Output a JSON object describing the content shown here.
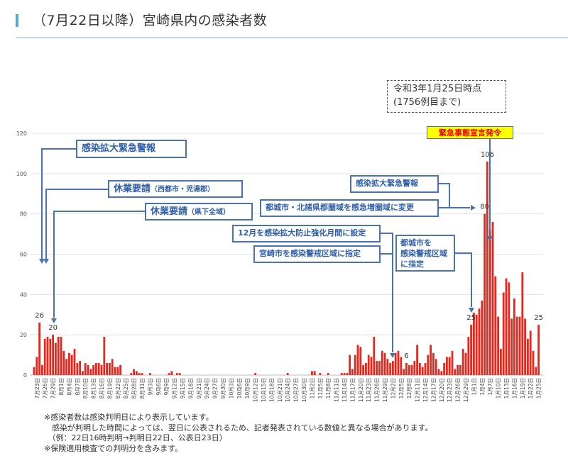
{
  "header": {
    "title": "（7月22日以降）宮崎県内の感染者数"
  },
  "as_of": {
    "line1": "令和3年1月25日時点",
    "line2": "(1756例目まで)"
  },
  "emergency_label": "緊急事態宣言発令",
  "annotations": {
    "a1": "感染拡大緊急警報",
    "a2_main": "休業要請",
    "a2_sub": "（西都市・児湯郡）",
    "a3_main": "休業要請",
    "a3_sub": "（県下全域）",
    "a4": "感染拡大緊急警報",
    "a5": "都城市・北諸県郡圏域を感急増圏域に変更",
    "a6": "12月を感染拡大防止強化月間に設定",
    "a7": "宮崎市を感染警戒区域に指定",
    "a8": "都城市を\n感染警戒区域\nに指定"
  },
  "notes": [
    "※感染者数は感染判明日により表示しています。",
    "　感染が判明した時間によっては、翌日に公表されるため、記者発表されている数値と異なる場合があります。",
    "　（例：22日16時判明→判明日22日、公表日23日）",
    "※保険適用検査での判明分を含みます。"
  ],
  "colors": {
    "bar": "#e8261c",
    "accent": "#5aa9c8",
    "annotation": "#4a72b0",
    "emergency_bg": "#ffff00",
    "emergency_text": "#ee0000"
  },
  "chart_data": {
    "type": "bar",
    "title": "（7月22日以降）宮崎県内の感染者数",
    "xlabel": "",
    "ylabel": "",
    "ylim": [
      0,
      120
    ],
    "yticks": [
      0,
      20,
      40,
      60,
      80,
      100,
      120
    ],
    "grid": true,
    "start_date": "7月22日",
    "xtick_labels": [
      "7月23日",
      "7月26日",
      "7月29日",
      "8月1日",
      "8月4日",
      "8月7日",
      "8月10日",
      "8月13日",
      "8月16日",
      "8月19日",
      "8月22日",
      "8月25日",
      "8月28日",
      "8月31日",
      "9月3日",
      "9月6日",
      "9月9日",
      "9月12日",
      "9月15日",
      "9月18日",
      "9月21日",
      "9月24日",
      "9月27日",
      "9月30日",
      "10月3日",
      "10月6日",
      "10月9日",
      "10月12日",
      "10月15日",
      "10月18日",
      "10月21日",
      "10月24日",
      "10月27日",
      "10月30日",
      "11月2日",
      "11月5日",
      "11月8日",
      "11月11日",
      "11月14日",
      "11月17日",
      "11月20日",
      "11月23日",
      "11月26日",
      "11月29日",
      "12月2日",
      "12月5日",
      "12月8日",
      "12月11日",
      "12月14日",
      "12月17日",
      "12月20日",
      "12月23日",
      "12月26日",
      "12月29日",
      "1月1日",
      "1月4日",
      "1月7日",
      "1月10日",
      "1月13日",
      "1月16日",
      "1月19日",
      "1月22日",
      "1月25日"
    ],
    "values": [
      4,
      9,
      26,
      5,
      18,
      19,
      18,
      20,
      16,
      19,
      19,
      12,
      8,
      11,
      10,
      13,
      6,
      7,
      2,
      6,
      5,
      3,
      5,
      6,
      6,
      5,
      19,
      6,
      6,
      8,
      4,
      4,
      5,
      0,
      0,
      0,
      1,
      3,
      2,
      1,
      1,
      0,
      0,
      1,
      0,
      0,
      0,
      0,
      0,
      0,
      1,
      2,
      0,
      1,
      1,
      0,
      0,
      0,
      0,
      0,
      0,
      0,
      0,
      0,
      0,
      0,
      0,
      0,
      0,
      0,
      0,
      0,
      0,
      0,
      0,
      0,
      0,
      0,
      0,
      0,
      0,
      0,
      1,
      0,
      0,
      0,
      0,
      0,
      0,
      0,
      0,
      0,
      0,
      0,
      1,
      0,
      0,
      0,
      0,
      0,
      0,
      0,
      0,
      2,
      2,
      0,
      1,
      0,
      0,
      1,
      0,
      0,
      0,
      0,
      1,
      1,
      1,
      10,
      3,
      10,
      15,
      14,
      5,
      6,
      10,
      9,
      19,
      7,
      7,
      12,
      11,
      8,
      6,
      7,
      11,
      12,
      9,
      3,
      6,
      5,
      5,
      7,
      15,
      6,
      4,
      6,
      10,
      15,
      11,
      8,
      3,
      2,
      6,
      9,
      9,
      12,
      3,
      5,
      5,
      13,
      11,
      19,
      25,
      31,
      30,
      33,
      37,
      80,
      106,
      72,
      76,
      49,
      29,
      13,
      41,
      48,
      46,
      28,
      38,
      29,
      29,
      51,
      28,
      18,
      22,
      12,
      4,
      25
    ],
    "data_labels": [
      {
        "date": "7月24日",
        "text": "26"
      },
      {
        "date": "7月29日",
        "text": "20"
      },
      {
        "date": "12月7日",
        "text": "6"
      },
      {
        "date": "12月31日",
        "text": "25"
      },
      {
        "date": "1月5日",
        "text": "80"
      },
      {
        "date": "1月6日",
        "text": "106"
      },
      {
        "date": "1月25日",
        "text": "25"
      }
    ]
  }
}
